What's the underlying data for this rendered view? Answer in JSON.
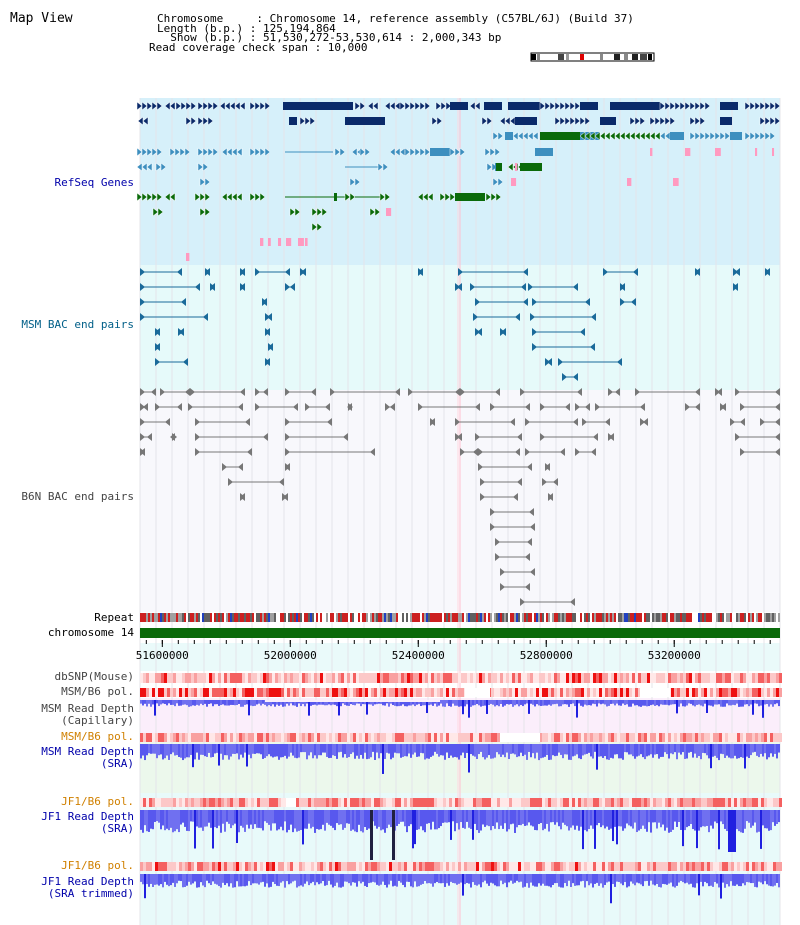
{
  "view": {
    "title": "Map View",
    "info_lines": [
      "Chromosome     : Chromosome 14, reference assembly (C57BL/6J) (Build 37)",
      "Length (b.p.) : 125,194,864",
      "  Show (b.p.) : 51,530,272-53,530,614 : 2,000,343 bp",
      "Read coverage check span : 10,000"
    ]
  },
  "axis": {
    "start": 51530272,
    "end": 53530614,
    "ticks": [
      "51600000",
      "52000000",
      "52400000",
      "52800000",
      "53200000"
    ]
  },
  "tracks": {
    "refseq": "RefSeq Genes",
    "msm_bac": "MSM BAC end pairs",
    "b6n_bac": "B6N BAC end pairs",
    "repeat": "Repeat",
    "chromosome": "chromosome 14",
    "dbsnp": "dbSNP(Mouse)",
    "msm_b6_pol": "MSM/B6 pol.",
    "msm_depth_cap": [
      "MSM Read Depth",
      "(Capillary)"
    ],
    "msm_b6_pol_2": "MSM/B6 pol.",
    "msm_depth_sra": [
      "MSM Read Depth",
      "(SRA)"
    ],
    "jf1_b6_pol": "JF1/B6 pol.",
    "jf1_depth_sra": [
      "JF1 Read Depth",
      "(SRA)"
    ],
    "jf1_b6_pol_2": "JF1/B6 pol.",
    "jf1_depth_trim": [
      "JF1 Read Depth",
      "(SRA trimmed)"
    ]
  },
  "colors": {
    "refseq_bg": "#d6f0fa",
    "msm_bac_bg": "#e6fafa",
    "b6n_bg": "#f8f8fc",
    "gene_navy": "#0a2a6a",
    "gene_blue": "#3d8fbf",
    "gene_green": "#0a6a0a",
    "msm_pair": "#1a6a9a",
    "b6n_pair": "#777777",
    "chromosome": "#0a6a0a",
    "depth": "#3030ee",
    "pol": "#ee2020"
  }
}
